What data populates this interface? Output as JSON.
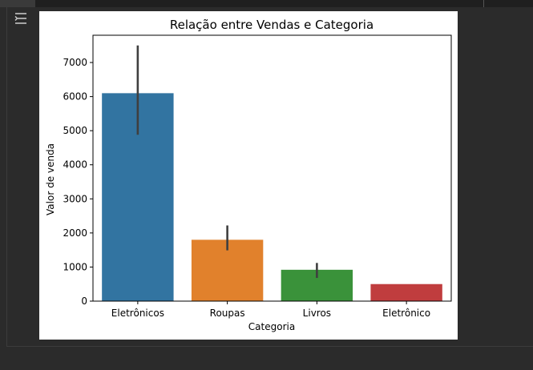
{
  "output_toggle_icon": "output-options-icon",
  "chart_data": {
    "type": "bar",
    "title": "Relação entre Vendas e Categoria",
    "xlabel": "Categoria",
    "ylabel": "Valor de venda",
    "categories": [
      "Eletrônicos",
      "Roupas",
      "Livros",
      "Eletrônico"
    ],
    "values": [
      6100,
      1800,
      920,
      500
    ],
    "error_low": [
      4880,
      1490,
      680,
      500
    ],
    "error_high": [
      7500,
      2220,
      1120,
      500
    ],
    "colors": [
      "#3274a1",
      "#e1812c",
      "#3a923a",
      "#c03d3e"
    ],
    "yticks": [
      0,
      1000,
      2000,
      3000,
      4000,
      5000,
      6000,
      7000
    ],
    "ylim": [
      0,
      7800
    ],
    "grid": false,
    "legend": "none"
  }
}
